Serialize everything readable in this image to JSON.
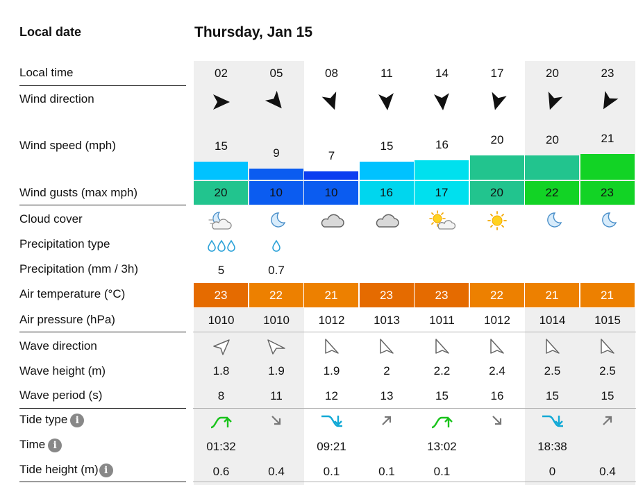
{
  "header": {
    "local_date_label": "Local date",
    "date": "Thursday, Jan 15"
  },
  "labels": {
    "local_time": "Local time",
    "wind_direction": "Wind direction",
    "wind_speed": "Wind speed (mph)",
    "wind_gusts": "Wind gusts (max mph)",
    "cloud_cover": "Cloud cover",
    "precip_type": "Precipitation type",
    "precip": "Precipitation (mm / 3h)",
    "air_temp": "Air temperature (°C)",
    "air_pressure": "Air pressure (hPa)",
    "wave_direction": "Wave direction",
    "wave_height": "Wave height (m)",
    "wave_period": "Wave period (s)",
    "tide_type": "Tide type",
    "tide_time": "Time",
    "tide_height": "Tide height (m)"
  },
  "info_glyph": "i",
  "columns": [
    {
      "time": "02",
      "night": true,
      "wind_dir_deg": 90,
      "wind_speed": "15",
      "wind_color": "#00c2ff",
      "gust": "20",
      "gust_color": "#22c48e",
      "cloud": "night-partly",
      "precip_type": "rain-3",
      "precip": "5",
      "temp": "23",
      "temp_color": "#e56b00",
      "pressure": "1010",
      "wave_dir": "wave-ne",
      "wave_height": "1.8",
      "wave_period": "8",
      "tide": "high",
      "tide_color": "#19c31b",
      "tide_time": "01:32",
      "tide_height": "0.6"
    },
    {
      "time": "05",
      "night": true,
      "wind_dir_deg": 140,
      "wind_speed": "9",
      "wind_color": "#0b5cf0",
      "gust": "10",
      "gust_color": "#0b5cf0",
      "cloud": "moon",
      "precip_type": "rain-1",
      "precip": "0.7",
      "temp": "22",
      "temp_color": "#ed8000",
      "pressure": "1010",
      "wave_dir": "wave-e",
      "wave_height": "1.9",
      "wave_period": "11",
      "tide": "fall",
      "tide_color": "#777777",
      "tide_time": "",
      "tide_height": "0.4"
    },
    {
      "time": "08",
      "night": false,
      "wind_dir_deg": 160,
      "wind_speed": "7",
      "wind_color": "#0c3df0",
      "gust": "10",
      "gust_color": "#0b5cf0",
      "cloud": "cloudy",
      "precip_type": "",
      "precip": "",
      "temp": "21",
      "temp_color": "#ed8000",
      "pressure": "1012",
      "wave_dir": "wave-se",
      "wave_height": "1.9",
      "wave_period": "12",
      "tide": "low",
      "tide_color": "#12a9d6",
      "tide_time": "09:21",
      "tide_height": "0.1"
    },
    {
      "time": "11",
      "night": false,
      "wind_dir_deg": 175,
      "wind_speed": "15",
      "wind_color": "#00c2ff",
      "gust": "16",
      "gust_color": "#00d6ee",
      "cloud": "cloudy",
      "precip_type": "",
      "precip": "",
      "temp": "23",
      "temp_color": "#e56b00",
      "pressure": "1013",
      "wave_dir": "wave-se",
      "wave_height": "2",
      "wave_period": "13",
      "tide": "rise",
      "tide_color": "#777777",
      "tide_time": "",
      "tide_height": "0.1"
    },
    {
      "time": "14",
      "night": false,
      "wind_dir_deg": 175,
      "wind_speed": "16",
      "wind_color": "#00e0ee",
      "gust": "17",
      "gust_color": "#00e0ee",
      "cloud": "sun-cloud",
      "precip_type": "",
      "precip": "",
      "temp": "23",
      "temp_color": "#e56b00",
      "pressure": "1011",
      "wave_dir": "wave-se",
      "wave_height": "2.2",
      "wave_period": "15",
      "tide": "high",
      "tide_color": "#19c31b",
      "tide_time": "13:02",
      "tide_height": "0.1"
    },
    {
      "time": "17",
      "night": false,
      "wind_dir_deg": 195,
      "wind_speed": "20",
      "wind_color": "#22c48e",
      "gust": "20",
      "gust_color": "#22c48e",
      "cloud": "sun",
      "precip_type": "",
      "precip": "",
      "temp": "22",
      "temp_color": "#ed8000",
      "pressure": "1012",
      "wave_dir": "wave-se",
      "wave_height": "2.4",
      "wave_period": "16",
      "tide": "fall",
      "tide_color": "#777777",
      "tide_time": "",
      "tide_height": ""
    },
    {
      "time": "20",
      "night": true,
      "wind_dir_deg": 200,
      "wind_speed": "20",
      "wind_color": "#22c48e",
      "gust": "22",
      "gust_color": "#12d325",
      "cloud": "moon",
      "precip_type": "",
      "precip": "",
      "temp": "21",
      "temp_color": "#ed8000",
      "pressure": "1014",
      "wave_dir": "wave-se",
      "wave_height": "2.5",
      "wave_period": "15",
      "tide": "low",
      "tide_color": "#12a9d6",
      "tide_time": "18:38",
      "tide_height": "0"
    },
    {
      "time": "23",
      "night": true,
      "wind_dir_deg": 210,
      "wind_speed": "21",
      "wind_color": "#12d325",
      "gust": "23",
      "gust_color": "#12d325",
      "cloud": "moon",
      "precip_type": "",
      "precip": "",
      "temp": "21",
      "temp_color": "#ed8000",
      "pressure": "1015",
      "wave_dir": "wave-se",
      "wave_height": "2.5",
      "wave_period": "15",
      "tide": "rise",
      "tide_color": "#777777",
      "tide_time": "",
      "tide_height": "0.4"
    }
  ]
}
